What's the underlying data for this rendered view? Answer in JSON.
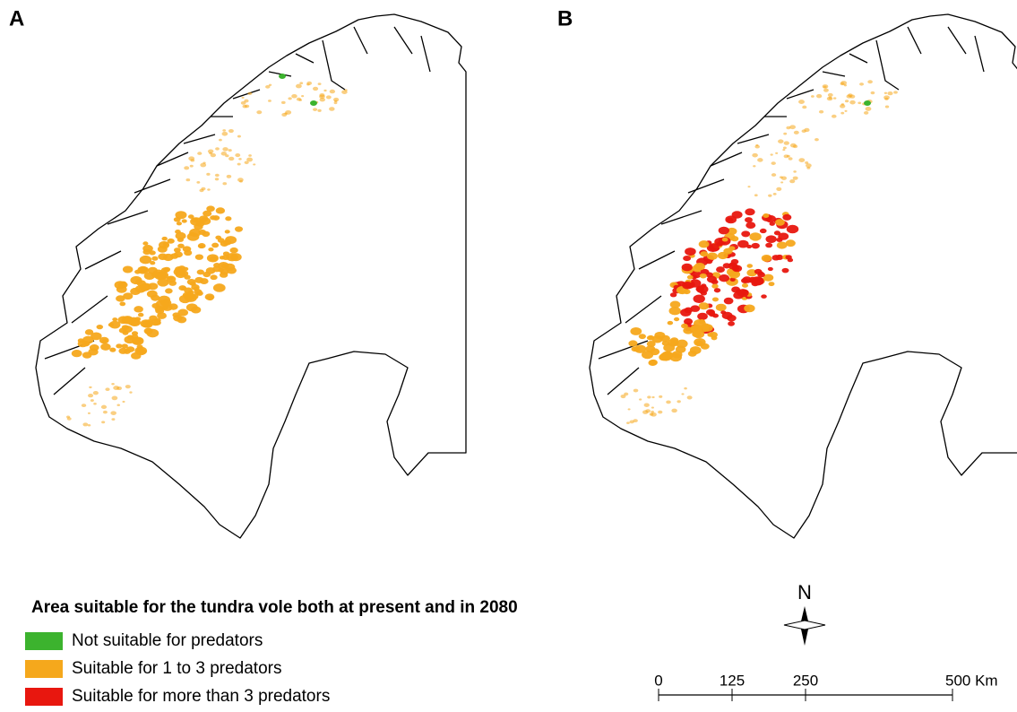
{
  "panels": [
    {
      "label": "A"
    },
    {
      "label": "B"
    }
  ],
  "legend": {
    "title": "Area suitable for the tundra vole both at present and in 2080",
    "items": [
      {
        "label": "Not suitable for predators",
        "color": "#3cb32e"
      },
      {
        "label": "Suitable for 1 to 3 predators",
        "color": "#f5a81c"
      },
      {
        "label": "Suitable for more than 3 predators",
        "color": "#e8170f"
      }
    ]
  },
  "north_arrow": {
    "label": "N"
  },
  "scale_bar": {
    "ticks": [
      0,
      125,
      250,
      {
        "value": 500,
        "label": "500 Km"
      }
    ]
  }
}
